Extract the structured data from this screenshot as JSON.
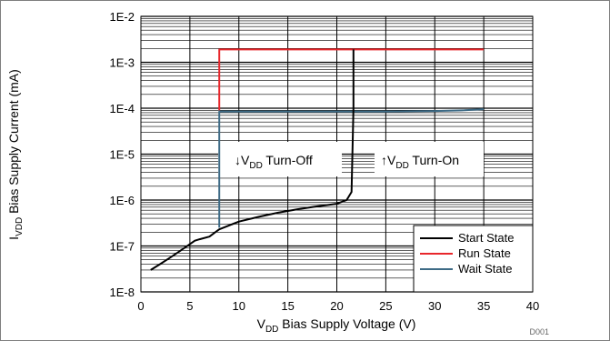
{
  "chart_data": {
    "type": "line",
    "xlabel": {
      "prefix": "V",
      "sub": "DD",
      "rest": " Bias Supply Voltage (V)"
    },
    "ylabel": {
      "prefix": "I",
      "sub": "VDD",
      "rest": " Bias Supply Current (mA)"
    },
    "xlim": [
      0,
      40
    ],
    "ylim": [
      1e-08,
      0.01
    ],
    "y_scale": "log",
    "grid": true,
    "x_ticks": [
      "0",
      "5",
      "10",
      "15",
      "20",
      "25",
      "30",
      "35",
      "40"
    ],
    "y_ticks": [
      "1E-8",
      "1E-7",
      "1E-6",
      "1E-5",
      "1E-4",
      "1E-3",
      "1E-2"
    ],
    "legend_position": "bottom-right",
    "series": [
      {
        "name": "Start State",
        "color": "#000000",
        "x": [
          1,
          2,
          3,
          4,
          5,
          5.5,
          6,
          7,
          7.6,
          8,
          9,
          10,
          12,
          14,
          16,
          18,
          20,
          21,
          21.5,
          21.7,
          21.7
        ],
        "y": [
          3e-08,
          4.1e-08,
          5.6e-08,
          7.8e-08,
          1.1e-07,
          1.3e-07,
          1.4e-07,
          1.6e-07,
          2e-07,
          2.3e-07,
          2.8e-07,
          3.4e-07,
          4.3e-07,
          5.3e-07,
          6.3e-07,
          7.3e-07,
          8.3e-07,
          1e-06,
          1.5e-06,
          0.0001,
          0.0019
        ]
      },
      {
        "name": "Run State",
        "color": "#e8262b",
        "x": [
          8,
          8,
          15,
          21.7,
          25,
          30,
          35
        ],
        "y": [
          9e-05,
          0.0019,
          0.0019,
          0.0019,
          0.0019,
          0.0019,
          0.0019
        ]
      },
      {
        "name": "Wait State",
        "color": "#3e6b86",
        "x": [
          8,
          8,
          10,
          15,
          20,
          25,
          30,
          33,
          35
        ],
        "y": [
          2.5e-07,
          8.5e-05,
          8.5e-05,
          8.5e-05,
          8.5e-05,
          8.5e-05,
          8.7e-05,
          9e-05,
          9.5e-05
        ]
      }
    ],
    "annotations": [
      {
        "arrow": "↓",
        "prefix": "V",
        "sub": "DD",
        "rest": " Turn-Off"
      },
      {
        "arrow": "↑",
        "prefix": "V",
        "sub": "DD",
        "rest": " Turn-On"
      }
    ]
  },
  "figure_code": "D001"
}
